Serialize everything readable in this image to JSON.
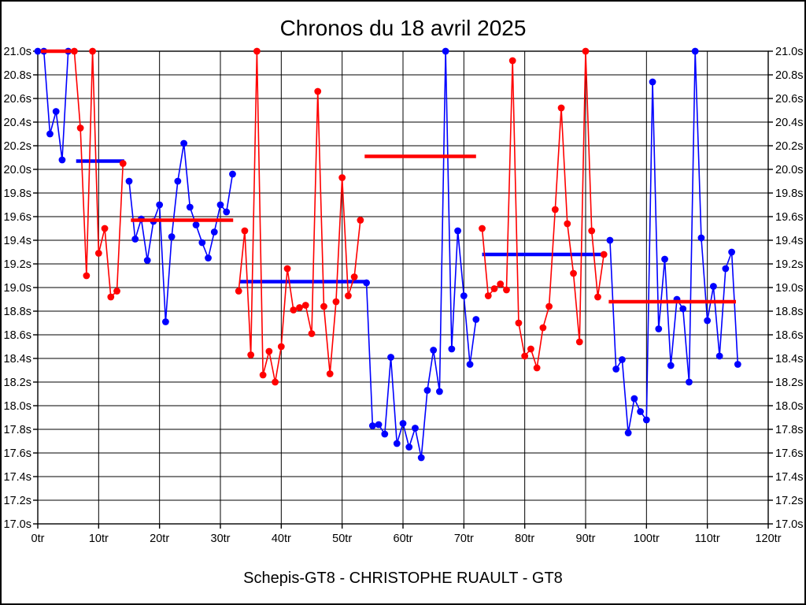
{
  "page": {
    "title": "Chronos du 18 avril 2025",
    "footer": "Schepis-GT8 - CHRISTOPHE RUAULT - GT8"
  },
  "chart_data": {
    "type": "line",
    "title": "Chronos du 18 avril 2025",
    "subtitle": "",
    "footer": "Schepis-GT8 - CHRISTOPHE RUAULT - GT8",
    "x_unit": "tr",
    "y_unit": "s",
    "xlim": [
      0,
      120
    ],
    "ylim": [
      17.0,
      21.0
    ],
    "grid": true,
    "legend": "none",
    "colors": {
      "blue": "#0000ff",
      "red": "#ff0000",
      "grid": "#000000",
      "background": "#ffffff",
      "text": "#000000"
    },
    "y_ticks": [
      {
        "v": 17.0,
        "label": "17.0s"
      },
      {
        "v": 17.2,
        "label": "17.2s"
      },
      {
        "v": 17.4,
        "label": "17.4s"
      },
      {
        "v": 17.6,
        "label": "17.6s"
      },
      {
        "v": 17.8,
        "label": "17.8s"
      },
      {
        "v": 18.0,
        "label": "18.0s"
      },
      {
        "v": 18.2,
        "label": "18.2s"
      },
      {
        "v": 18.4,
        "label": "18.4s"
      },
      {
        "v": 18.6,
        "label": "18.6s"
      },
      {
        "v": 18.8,
        "label": "18.8s"
      },
      {
        "v": 19.0,
        "label": "19.0s"
      },
      {
        "v": 19.2,
        "label": "19.2s"
      },
      {
        "v": 19.4,
        "label": "19.4s"
      },
      {
        "v": 19.6,
        "label": "19.6s"
      },
      {
        "v": 19.8,
        "label": "19.8s"
      },
      {
        "v": 20.0,
        "label": "20.0s"
      },
      {
        "v": 20.2,
        "label": "20.2s"
      },
      {
        "v": 20.4,
        "label": "20.4s"
      },
      {
        "v": 20.6,
        "label": "20.6s"
      },
      {
        "v": 20.8,
        "label": "20.8s"
      },
      {
        "v": 21.0,
        "label": "21.0s"
      }
    ],
    "x_ticks": [
      {
        "v": 0,
        "label": "0tr"
      },
      {
        "v": 10,
        "label": "10tr"
      },
      {
        "v": 20,
        "label": "20tr"
      },
      {
        "v": 30,
        "label": "30tr"
      },
      {
        "v": 40,
        "label": "40tr"
      },
      {
        "v": 50,
        "label": "50tr"
      },
      {
        "v": 60,
        "label": "60tr"
      },
      {
        "v": 70,
        "label": "70tr"
      },
      {
        "v": 80,
        "label": "80tr"
      },
      {
        "v": 90,
        "label": "90tr"
      },
      {
        "v": 100,
        "label": "100tr"
      },
      {
        "v": 110,
        "label": "110tr"
      },
      {
        "v": 120,
        "label": "120tr"
      }
    ],
    "series": [
      {
        "name": "driver-blue",
        "color_key": "blue",
        "stints": [
          [
            [
              0,
              21.0
            ],
            [
              1,
              21.0
            ],
            [
              2,
              20.3
            ],
            [
              3,
              20.49
            ],
            [
              4,
              20.08
            ],
            [
              5,
              21.0
            ]
          ],
          [
            [
              15,
              19.9
            ],
            [
              16,
              19.41
            ],
            [
              17,
              19.58
            ],
            [
              18,
              19.23
            ],
            [
              19,
              19.56
            ],
            [
              20,
              19.7
            ],
            [
              21,
              18.71
            ],
            [
              22,
              19.43
            ],
            [
              23,
              19.9
            ],
            [
              24,
              20.22
            ],
            [
              25,
              19.68
            ],
            [
              26,
              19.53
            ],
            [
              27,
              19.38
            ],
            [
              28,
              19.25
            ],
            [
              29,
              19.47
            ],
            [
              30,
              19.7
            ],
            [
              31,
              19.64
            ],
            [
              32,
              19.96
            ]
          ],
          [
            [
              54,
              19.04
            ],
            [
              55,
              17.83
            ],
            [
              56,
              17.84
            ],
            [
              57,
              17.76
            ],
            [
              58,
              18.41
            ],
            [
              59,
              17.68
            ],
            [
              60,
              17.85
            ],
            [
              61,
              17.65
            ],
            [
              62,
              17.81
            ],
            [
              63,
              17.56
            ],
            [
              64,
              18.13
            ],
            [
              65,
              18.47
            ],
            [
              66,
              18.12
            ],
            [
              67,
              21.0
            ],
            [
              68,
              18.48
            ],
            [
              69,
              19.48
            ],
            [
              70,
              18.93
            ],
            [
              71,
              18.35
            ],
            [
              72,
              18.73
            ]
          ],
          [
            [
              94,
              19.4
            ],
            [
              95,
              18.31
            ],
            [
              96,
              18.39
            ],
            [
              97,
              17.77
            ],
            [
              98,
              18.06
            ],
            [
              99,
              17.95
            ],
            [
              100,
              17.88
            ],
            [
              101,
              20.74
            ],
            [
              102,
              18.65
            ],
            [
              103,
              19.24
            ],
            [
              104,
              18.34
            ],
            [
              105,
              18.9
            ],
            [
              106,
              18.82
            ],
            [
              107,
              18.2
            ],
            [
              108,
              21.0
            ],
            [
              109,
              19.42
            ],
            [
              110,
              18.72
            ],
            [
              111,
              19.01
            ],
            [
              112,
              18.42
            ],
            [
              113,
              19.16
            ],
            [
              114,
              19.3
            ],
            [
              115,
              18.35
            ]
          ]
        ]
      },
      {
        "name": "driver-red",
        "color_key": "red",
        "stints": [
          [
            [
              6,
              21.0
            ],
            [
              7,
              20.35
            ],
            [
              8,
              19.1
            ],
            [
              9,
              21.0
            ],
            [
              10,
              19.29
            ],
            [
              11,
              19.5
            ],
            [
              12,
              18.92
            ],
            [
              13,
              18.97
            ],
            [
              14,
              20.05
            ]
          ],
          [
            [
              33,
              18.97
            ],
            [
              34,
              19.48
            ],
            [
              35,
              18.43
            ],
            [
              36,
              21.0
            ],
            [
              37,
              18.26
            ],
            [
              38,
              18.46
            ],
            [
              39,
              18.2
            ],
            [
              40,
              18.5
            ],
            [
              41,
              19.16
            ],
            [
              42,
              18.81
            ],
            [
              43,
              18.83
            ],
            [
              44,
              18.85
            ],
            [
              45,
              18.61
            ],
            [
              46,
              20.66
            ],
            [
              47,
              18.84
            ],
            [
              48,
              18.27
            ],
            [
              49,
              18.88
            ],
            [
              50,
              19.93
            ],
            [
              51,
              18.93
            ],
            [
              52,
              19.09
            ],
            [
              53,
              19.57
            ]
          ],
          [
            [
              73,
              19.5
            ],
            [
              74,
              18.93
            ],
            [
              75,
              18.99
            ],
            [
              76,
              19.03
            ],
            [
              77,
              18.98
            ],
            [
              78,
              20.92
            ],
            [
              79,
              18.7
            ],
            [
              80,
              18.42
            ],
            [
              81,
              18.48
            ],
            [
              82,
              18.32
            ],
            [
              83,
              18.66
            ],
            [
              84,
              18.84
            ],
            [
              85,
              19.66
            ],
            [
              86,
              20.52
            ],
            [
              87,
              19.54
            ],
            [
              88,
              19.12
            ],
            [
              89,
              18.54
            ],
            [
              90,
              21.0
            ],
            [
              91,
              19.48
            ],
            [
              92,
              18.92
            ],
            [
              93,
              19.28
            ]
          ]
        ]
      }
    ],
    "average_segments": [
      {
        "color_key": "red",
        "x1": 0.5,
        "x2": 5.5,
        "y": 21.0
      },
      {
        "color_key": "blue",
        "x1": 6.3,
        "x2": 14.2,
        "y": 20.07
      },
      {
        "color_key": "red",
        "x1": 15.3,
        "x2": 32.1,
        "y": 19.57
      },
      {
        "color_key": "blue",
        "x1": 33.1,
        "x2": 54.0,
        "y": 19.05
      },
      {
        "color_key": "red",
        "x1": 53.7,
        "x2": 72.0,
        "y": 20.11
      },
      {
        "color_key": "blue",
        "x1": 73.0,
        "x2": 92.7,
        "y": 19.28
      },
      {
        "color_key": "red",
        "x1": 93.8,
        "x2": 114.7,
        "y": 18.88
      }
    ]
  }
}
